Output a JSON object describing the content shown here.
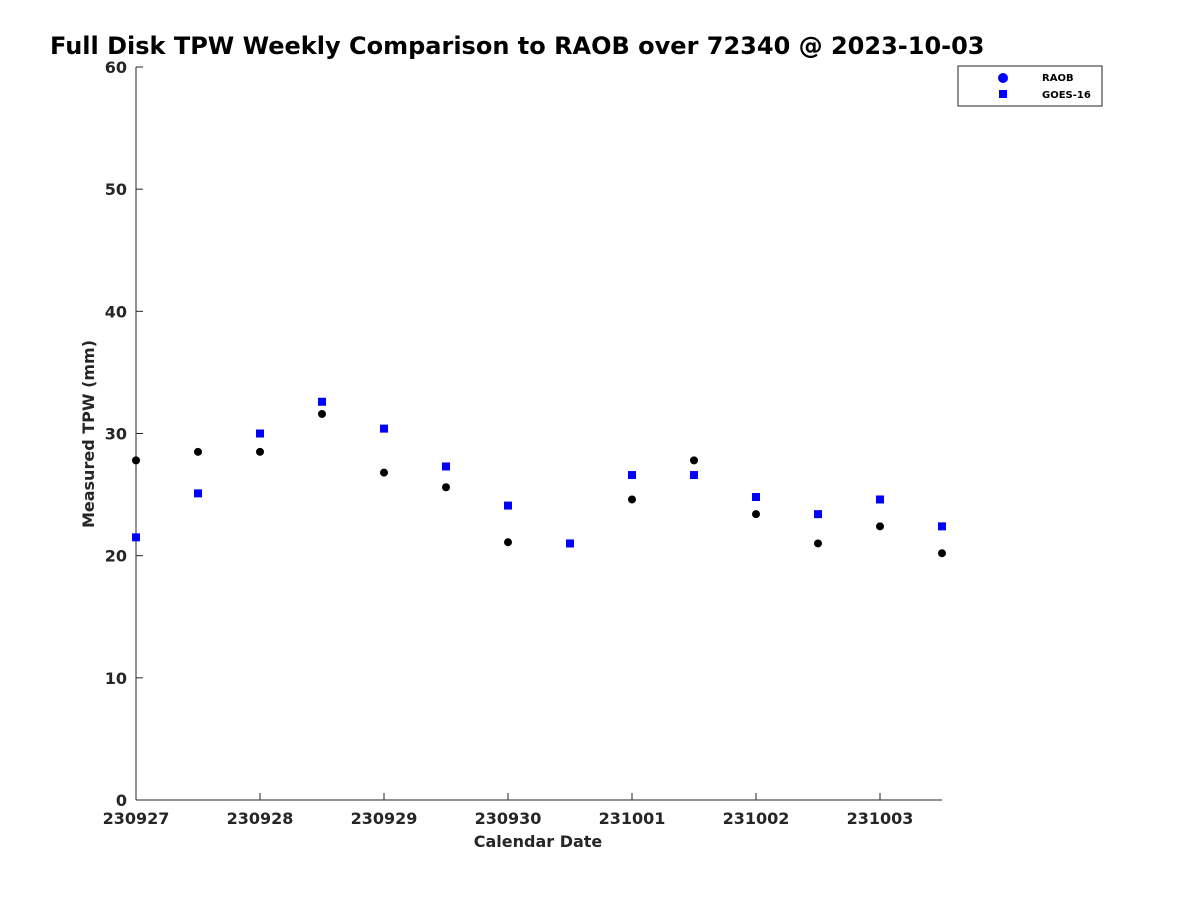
{
  "chart_data": {
    "type": "scatter",
    "title": "Full Disk TPW Weekly Comparison to RAOB over 72340 @ 2023-10-03",
    "xlabel": "Calendar Date",
    "ylabel": "Measured TPW (mm)",
    "xlim": [
      0,
      6.5
    ],
    "ylim": [
      0,
      60
    ],
    "xticks": [
      0,
      1,
      2,
      3,
      4,
      5,
      6
    ],
    "xtick_labels": [
      "230927",
      "230928",
      "230929",
      "230930",
      "231001",
      "231002",
      "231003"
    ],
    "yticks": [
      0,
      10,
      20,
      30,
      40,
      50,
      60
    ],
    "ytick_labels": [
      "0",
      "10",
      "20",
      "30",
      "40",
      "50",
      "60"
    ],
    "grid": false,
    "legend_position": "top-right",
    "legend_title": "",
    "x": [
      0,
      0.5,
      1,
      1.5,
      2,
      2.5,
      3,
      3.5,
      4,
      4.5,
      5,
      5.5,
      6,
      6.5
    ],
    "series": [
      {
        "name": "RAOB",
        "marker": "circle",
        "color": "#000000",
        "legend_color": "#0000ff",
        "values": [
          27.8,
          28.5,
          28.5,
          31.6,
          26.8,
          25.6,
          21.1,
          21.0,
          24.6,
          27.8,
          23.4,
          21.0,
          22.4,
          20.2
        ]
      },
      {
        "name": "GOES-16",
        "marker": "square",
        "color": "#0000ff",
        "values": [
          21.5,
          25.1,
          30.0,
          32.6,
          30.4,
          27.3,
          24.1,
          21.0,
          26.6,
          26.6,
          24.8,
          23.4,
          24.6,
          22.4
        ]
      }
    ]
  }
}
